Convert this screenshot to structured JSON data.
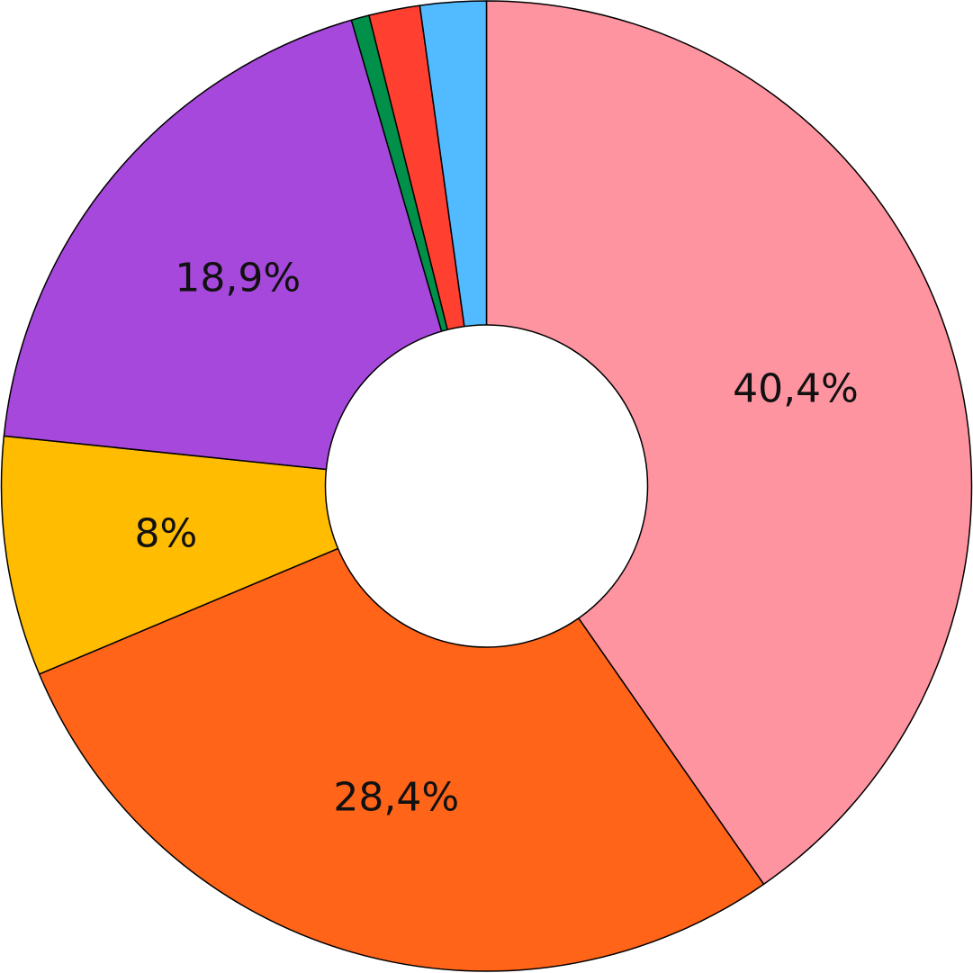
{
  "chart_data": {
    "type": "pie",
    "variant": "donut",
    "slices": [
      {
        "value": 40.4,
        "label": "40,4%",
        "color": "#FF94A1"
      },
      {
        "value": 28.4,
        "label": "28,4%",
        "color": "#FF6419"
      },
      {
        "value": 8.0,
        "label": "8%",
        "color": "#FFBC00"
      },
      {
        "value": 18.9,
        "label": "18,9%",
        "color": "#A648DB"
      },
      {
        "value": 0.6,
        "label": "",
        "color": "#00904A"
      },
      {
        "value": 1.7,
        "label": "",
        "color": "#FF3F2F"
      },
      {
        "value": 2.2,
        "label": "",
        "color": "#52BAFF"
      }
    ],
    "start_angle": "12 o'clock",
    "direction": "clockwise",
    "legend": "none",
    "title": ""
  }
}
